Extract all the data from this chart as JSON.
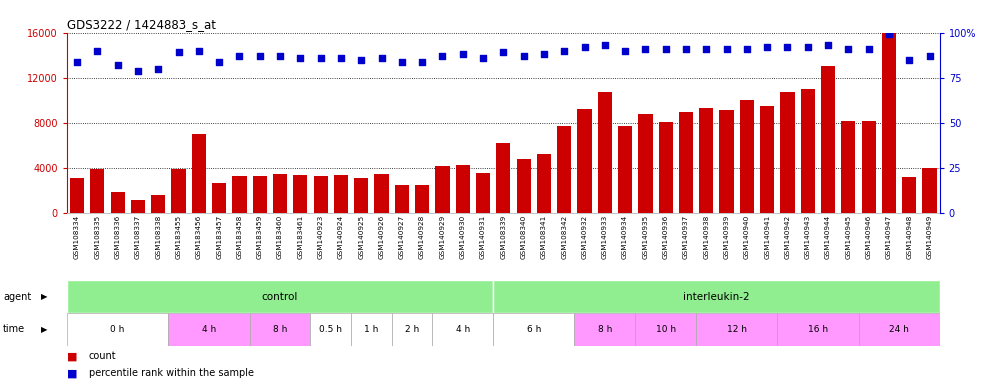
{
  "title": "GDS3222 / 1424883_s_at",
  "samples": [
    "GSM108334",
    "GSM108335",
    "GSM108336",
    "GSM108337",
    "GSM108338",
    "GSM183455",
    "GSM183456",
    "GSM183457",
    "GSM183458",
    "GSM183459",
    "GSM183460",
    "GSM183461",
    "GSM140923",
    "GSM140924",
    "GSM140925",
    "GSM140926",
    "GSM140927",
    "GSM140928",
    "GSM140929",
    "GSM140930",
    "GSM140931",
    "GSM108339",
    "GSM108340",
    "GSM108341",
    "GSM108342",
    "GSM140932",
    "GSM140933",
    "GSM140934",
    "GSM140935",
    "GSM140936",
    "GSM140937",
    "GSM140938",
    "GSM140939",
    "GSM140940",
    "GSM140941",
    "GSM140942",
    "GSM140943",
    "GSM140944",
    "GSM140945",
    "GSM140946",
    "GSM140947",
    "GSM140948",
    "GSM140949"
  ],
  "counts": [
    3100,
    3900,
    1900,
    1200,
    1600,
    3900,
    7000,
    2700,
    3300,
    3300,
    3500,
    3400,
    3300,
    3400,
    3100,
    3500,
    2500,
    2500,
    4200,
    4300,
    3600,
    6200,
    4800,
    5200,
    7700,
    9200,
    10700,
    7700,
    8800,
    8100,
    9000,
    9300,
    9100,
    10000,
    9500,
    10700,
    11000,
    13000,
    8200,
    8200,
    16000,
    3200,
    4000
  ],
  "percentiles": [
    84,
    90,
    82,
    79,
    80,
    89,
    90,
    84,
    87,
    87,
    87,
    86,
    86,
    86,
    85,
    86,
    84,
    84,
    87,
    88,
    86,
    89,
    87,
    88,
    90,
    92,
    93,
    90,
    91,
    91,
    91,
    91,
    91,
    91,
    92,
    92,
    92,
    93,
    91,
    91,
    99,
    85,
    87
  ],
  "bar_color": "#CC0000",
  "dot_color": "#0000CC",
  "ylim_left": [
    0,
    16000
  ],
  "ylim_right": [
    0,
    100
  ],
  "yticks_left": [
    0,
    4000,
    8000,
    12000,
    16000
  ],
  "yticks_right": [
    0,
    25,
    50,
    75,
    100
  ],
  "agent_groups": [
    {
      "label": "control",
      "start": 0,
      "end": 21,
      "color": "#90EE90"
    },
    {
      "label": "interleukin-2",
      "start": 21,
      "end": 43,
      "color": "#90EE90"
    }
  ],
  "time_groups": [
    {
      "label": "0 h",
      "start": 0,
      "end": 5,
      "color": "#ffffff"
    },
    {
      "label": "4 h",
      "start": 5,
      "end": 9,
      "color": "#FF99FF"
    },
    {
      "label": "8 h",
      "start": 9,
      "end": 12,
      "color": "#FF99FF"
    },
    {
      "label": "0.5 h",
      "start": 12,
      "end": 14,
      "color": "#ffffff"
    },
    {
      "label": "1 h",
      "start": 14,
      "end": 16,
      "color": "#ffffff"
    },
    {
      "label": "2 h",
      "start": 16,
      "end": 18,
      "color": "#ffffff"
    },
    {
      "label": "4 h",
      "start": 18,
      "end": 21,
      "color": "#ffffff"
    },
    {
      "label": "6 h",
      "start": 21,
      "end": 25,
      "color": "#ffffff"
    },
    {
      "label": "8 h",
      "start": 25,
      "end": 28,
      "color": "#FF99FF"
    },
    {
      "label": "10 h",
      "start": 28,
      "end": 31,
      "color": "#FF99FF"
    },
    {
      "label": "12 h",
      "start": 31,
      "end": 35,
      "color": "#FF99FF"
    },
    {
      "label": "16 h",
      "start": 35,
      "end": 39,
      "color": "#FF99FF"
    },
    {
      "label": "24 h",
      "start": 39,
      "end": 43,
      "color": "#FF99FF"
    }
  ],
  "legend_items": [
    {
      "label": "count",
      "color": "#CC0000"
    },
    {
      "label": "percentile rank within the sample",
      "color": "#0000CC"
    }
  ],
  "chart_bg": "#ffffff",
  "tick_area_bg": "#d8d8d8"
}
